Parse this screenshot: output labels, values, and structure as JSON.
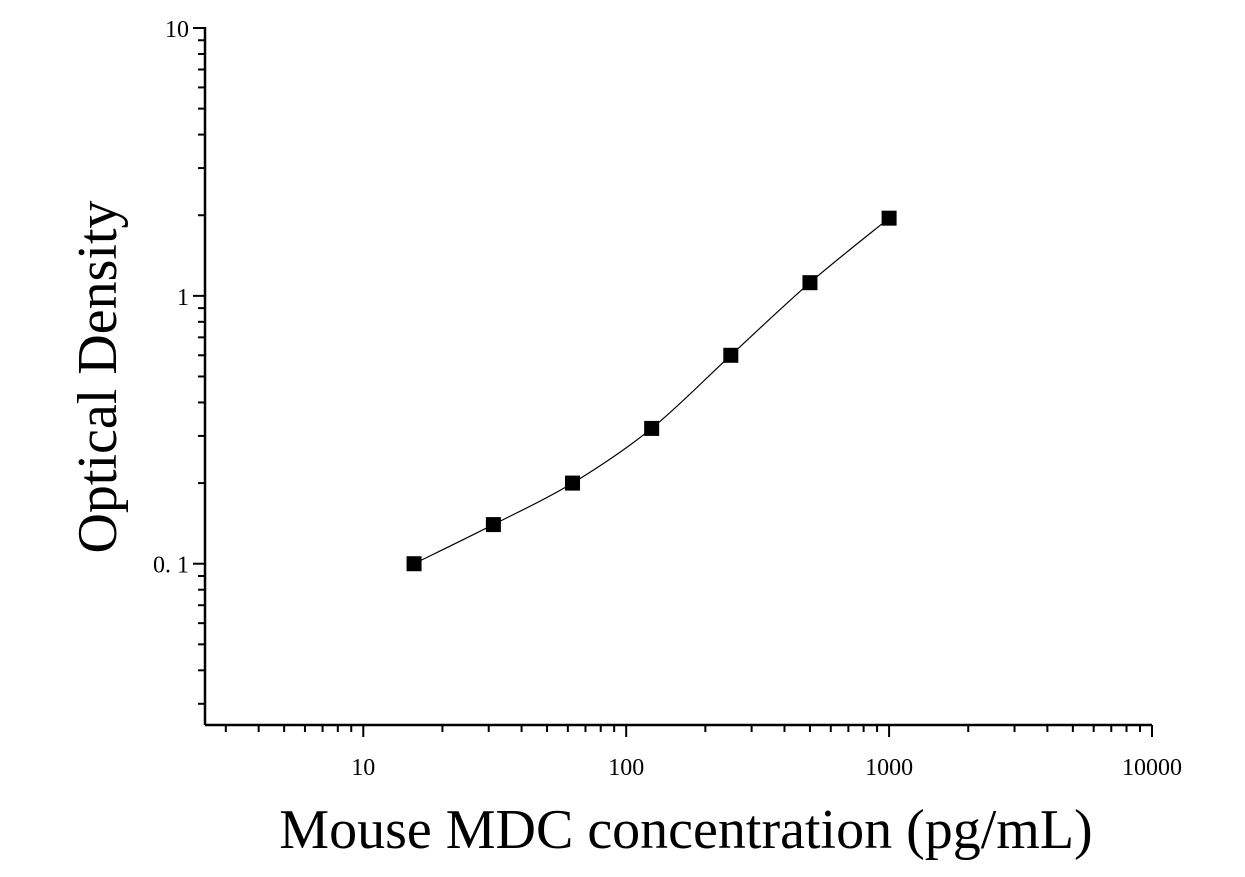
{
  "chart_data": {
    "type": "scatter",
    "xlabel": "Mouse MDC concentration (pg/mL)",
    "ylabel": "Optical Density",
    "xscale": "log",
    "yscale": "log",
    "xlim": [
      2.5,
      10000
    ],
    "ylim": [
      0.025,
      10
    ],
    "x_tick_labels": [
      {
        "value": 10,
        "label": "10"
      },
      {
        "value": 100,
        "label": "100"
      },
      {
        "value": 1000,
        "label": "1000"
      },
      {
        "value": 10000,
        "label": "10000"
      }
    ],
    "y_tick_labels": [
      {
        "value": 0.1,
        "label": "0. 1"
      },
      {
        "value": 1,
        "label": "1"
      },
      {
        "value": 10,
        "label": "10"
      }
    ],
    "grid": false,
    "legend": "none",
    "series": [
      {
        "marker": "square",
        "fit_line": true,
        "x": [
          15.6,
          31.25,
          62.5,
          125,
          250,
          500,
          1000
        ],
        "y": [
          0.1,
          0.14,
          0.2,
          0.32,
          0.6,
          1.12,
          1.95
        ]
      }
    ]
  }
}
